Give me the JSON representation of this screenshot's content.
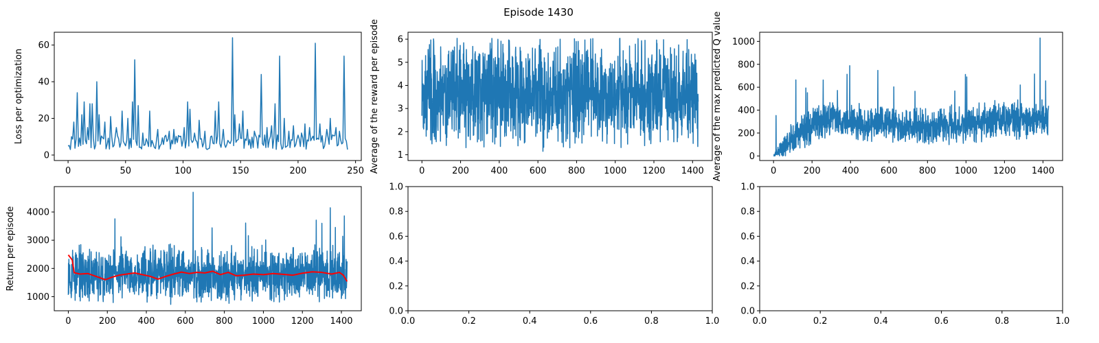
{
  "figure": {
    "suptitle": "Episode 1430"
  },
  "colors": {
    "series_blue": "#1f77b4",
    "moving_avg_red": "#ff0000",
    "axes": "#000000",
    "background": "#ffffff"
  },
  "chart_data": [
    {
      "id": "loss",
      "type": "line",
      "title": "",
      "xlabel": "",
      "ylabel": "Loss per optimization",
      "xlim": [
        -12,
        255
      ],
      "ylim": [
        -3,
        67
      ],
      "xticks": [
        0,
        50,
        100,
        150,
        200,
        250
      ],
      "xtick_labels": [
        "0",
        "50",
        "100",
        "150",
        "200",
        "250"
      ],
      "yticks": [
        0,
        20,
        40,
        60
      ],
      "ytick_labels": [
        "0",
        "20",
        "40",
        "60"
      ],
      "grid": false,
      "series": [
        {
          "n": 244,
          "x_start": 0,
          "x_step": 1,
          "baseline": 7,
          "noise": 4,
          "min": 1.5,
          "spikes": [
            [
              2,
              3
            ],
            [
              3,
              10
            ],
            [
              5,
              18
            ],
            [
              8,
              34
            ],
            [
              12,
              22
            ],
            [
              14,
              29
            ],
            [
              17,
              15
            ],
            [
              19,
              28
            ],
            [
              21,
              28
            ],
            [
              25,
              40
            ],
            [
              27,
              22
            ],
            [
              32,
              18
            ],
            [
              37,
              21
            ],
            [
              42,
              15
            ],
            [
              47,
              24
            ],
            [
              52,
              20
            ],
            [
              56,
              29
            ],
            [
              58,
              52
            ],
            [
              61,
              27
            ],
            [
              65,
              12
            ],
            [
              71,
              24
            ],
            [
              78,
              14
            ],
            [
              84,
              10
            ],
            [
              88,
              13
            ],
            [
              92,
              14
            ],
            [
              97,
              10
            ],
            [
              101,
              15
            ],
            [
              104,
              29
            ],
            [
              106,
              25
            ],
            [
              110,
              12
            ],
            [
              114,
              19
            ],
            [
              119,
              13
            ],
            [
              124,
              10
            ],
            [
              128,
              24
            ],
            [
              131,
              29
            ],
            [
              135,
              14
            ],
            [
              139,
              8
            ],
            [
              143,
              64
            ],
            [
              145,
              22
            ],
            [
              149,
              17
            ],
            [
              152,
              24
            ],
            [
              156,
              14
            ],
            [
              162,
              13
            ],
            [
              168,
              44
            ],
            [
              173,
              15
            ],
            [
              177,
              16
            ],
            [
              180,
              28
            ],
            [
              184,
              54
            ],
            [
              188,
              20
            ],
            [
              192,
              13
            ],
            [
              196,
              16
            ],
            [
              203,
              12
            ],
            [
              206,
              17
            ],
            [
              210,
              15
            ],
            [
              215,
              61
            ],
            [
              219,
              17
            ],
            [
              225,
              14
            ],
            [
              228,
              20
            ],
            [
              233,
              15
            ],
            [
              236,
              13
            ],
            [
              240,
              54
            ],
            [
              243,
              3
            ]
          ]
        }
      ]
    },
    {
      "id": "avg-reward",
      "type": "line",
      "title": "",
      "xlabel": "",
      "ylabel": "Average of the reward per episode",
      "xlim": [
        -72,
        1502
      ],
      "ylim": [
        0.75,
        6.3
      ],
      "xticks": [
        0,
        200,
        400,
        600,
        800,
        1000,
        1200,
        1400
      ],
      "xtick_labels": [
        "0",
        "200",
        "400",
        "600",
        "800",
        "1000",
        "1200",
        "1400"
      ],
      "yticks": [
        1,
        2,
        3,
        4,
        5,
        6
      ],
      "ytick_labels": [
        "1",
        "2",
        "3",
        "4",
        "5",
        "6"
      ],
      "grid": false,
      "series": [
        {
          "n": 1430,
          "x_start": 0,
          "x_step": 1,
          "mean": 3.7,
          "amplitude": 1.3,
          "min": 0.9,
          "max": 6.05
        }
      ]
    },
    {
      "id": "max-q",
      "type": "line",
      "title": "",
      "xlabel": "",
      "ylabel": "Average of the max predicted Q value",
      "xlim": [
        -72,
        1502
      ],
      "ylim": [
        -40,
        1080
      ],
      "xticks": [
        0,
        200,
        400,
        600,
        800,
        1000,
        1200,
        1400
      ],
      "xtick_labels": [
        "0",
        "200",
        "400",
        "600",
        "800",
        "1000",
        "1200",
        "1400"
      ],
      "yticks": [
        0,
        200,
        400,
        600,
        800,
        1000
      ],
      "ytick_labels": [
        "0",
        "200",
        "400",
        "600",
        "800",
        "1000"
      ],
      "grid": false,
      "series": [
        {
          "n": 1430,
          "x_start": 0,
          "x_step": 1,
          "trend": [
            [
              0,
              0
            ],
            [
              150,
              220
            ],
            [
              300,
              320
            ],
            [
              500,
              290
            ],
            [
              800,
              260
            ],
            [
              1000,
              280
            ],
            [
              1200,
              320
            ],
            [
              1429,
              330
            ]
          ],
          "amplitude": 130,
          "min": 0,
          "max": 1030
        }
      ]
    },
    {
      "id": "return",
      "type": "line",
      "title": "",
      "xlabel": "",
      "ylabel": "Return per episode",
      "xlim": [
        -72,
        1502
      ],
      "ylim": [
        500,
        4900
      ],
      "xticks": [
        0,
        200,
        400,
        600,
        800,
        1000,
        1200,
        1400
      ],
      "xtick_labels": [
        "0",
        "200",
        "400",
        "600",
        "800",
        "1000",
        "1200",
        "1400"
      ],
      "yticks": [
        1000,
        2000,
        3000,
        4000
      ],
      "ytick_labels": [
        "1000",
        "2000",
        "3000",
        "4000"
      ],
      "grid": false,
      "series": [
        {
          "n": 1430,
          "x_start": 0,
          "x_step": 1,
          "mean": 1800,
          "amplitude": 700,
          "min": 650,
          "max": 4700
        },
        {
          "style": "moving-average",
          "points": [
            [
              0,
              2480
            ],
            [
              20,
              2300
            ],
            [
              30,
              1850
            ],
            [
              60,
              1800
            ],
            [
              100,
              1820
            ],
            [
              150,
              1700
            ],
            [
              190,
              1600
            ],
            [
              220,
              1680
            ],
            [
              260,
              1760
            ],
            [
              300,
              1800
            ],
            [
              340,
              1840
            ],
            [
              380,
              1780
            ],
            [
              420,
              1720
            ],
            [
              460,
              1620
            ],
            [
              500,
              1720
            ],
            [
              540,
              1800
            ],
            [
              580,
              1870
            ],
            [
              620,
              1820
            ],
            [
              660,
              1860
            ],
            [
              700,
              1840
            ],
            [
              740,
              1900
            ],
            [
              780,
              1780
            ],
            [
              820,
              1860
            ],
            [
              860,
              1740
            ],
            [
              900,
              1760
            ],
            [
              950,
              1800
            ],
            [
              1000,
              1780
            ],
            [
              1050,
              1820
            ],
            [
              1100,
              1790
            ],
            [
              1150,
              1760
            ],
            [
              1200,
              1830
            ],
            [
              1250,
              1880
            ],
            [
              1300,
              1860
            ],
            [
              1350,
              1800
            ],
            [
              1390,
              1860
            ],
            [
              1410,
              1760
            ],
            [
              1429,
              1540
            ]
          ]
        }
      ]
    },
    {
      "id": "empty-1",
      "type": "line",
      "title": "",
      "xlabel": "",
      "ylabel": "",
      "xlim": [
        0,
        1
      ],
      "ylim": [
        0,
        1
      ],
      "xticks": [
        0.0,
        0.2,
        0.4,
        0.6,
        0.8,
        1.0
      ],
      "xtick_labels": [
        "0.0",
        "0.2",
        "0.4",
        "0.6",
        "0.8",
        "1.0"
      ],
      "yticks": [
        0.0,
        0.2,
        0.4,
        0.6,
        0.8,
        1.0
      ],
      "ytick_labels": [
        "0.0",
        "0.2",
        "0.4",
        "0.6",
        "0.8",
        "1.0"
      ],
      "grid": false,
      "series": []
    },
    {
      "id": "empty-2",
      "type": "line",
      "title": "",
      "xlabel": "",
      "ylabel": "",
      "xlim": [
        0,
        1
      ],
      "ylim": [
        0,
        1
      ],
      "xticks": [
        0.0,
        0.2,
        0.4,
        0.6,
        0.8,
        1.0
      ],
      "xtick_labels": [
        "0.0",
        "0.2",
        "0.4",
        "0.6",
        "0.8",
        "1.0"
      ],
      "yticks": [
        0.0,
        0.2,
        0.4,
        0.6,
        0.8,
        1.0
      ],
      "ytick_labels": [
        "0.0",
        "0.2",
        "0.4",
        "0.6",
        "0.8",
        "1.0"
      ],
      "grid": false,
      "series": []
    }
  ]
}
